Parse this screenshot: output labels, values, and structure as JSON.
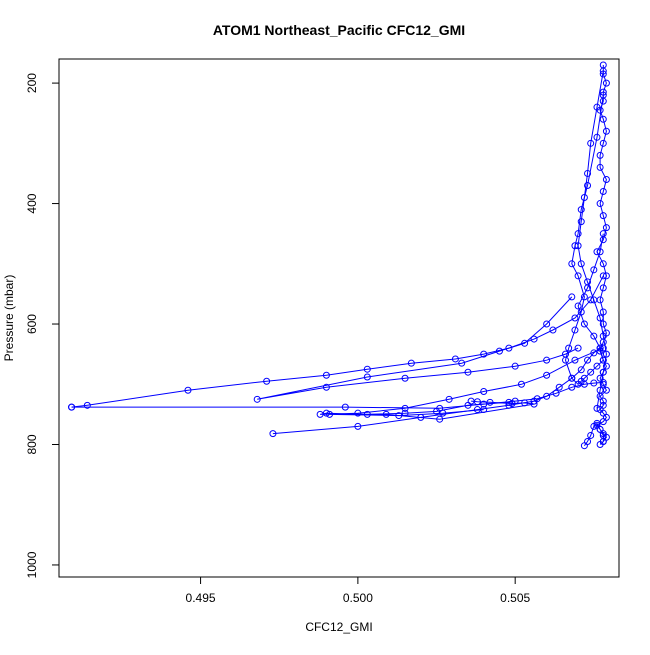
{
  "chart_data": {
    "type": "scatter",
    "title": "ATOM1 Northeast_Pacific CFC12_GMI",
    "xlabel": "CFC12_GMI",
    "ylabel": "Pressure (mbar)",
    "xlim": [
      0.4905,
      0.5083
    ],
    "ylim": [
      1020,
      160
    ],
    "y_reversed": true,
    "grid": false,
    "legend": "none",
    "series_color": "#0000ff",
    "x_ticks": [
      {
        "value": 0.495,
        "label": "0.495"
      },
      {
        "value": 0.5,
        "label": "0.500"
      },
      {
        "value": 0.505,
        "label": "0.505"
      }
    ],
    "y_ticks": [
      {
        "value": 200,
        "label": "200"
      },
      {
        "value": 400,
        "label": "400"
      },
      {
        "value": 600,
        "label": "600"
      },
      {
        "value": 800,
        "label": "800"
      },
      {
        "value": 1000,
        "label": "1000"
      }
    ],
    "series": [
      {
        "x": [
          0.5078,
          0.5078,
          0.5079,
          0.5078,
          0.5078,
          0.5077,
          0.5078,
          0.5079,
          0.5078,
          0.5077,
          0.5077,
          0.5079,
          0.5078,
          0.5077,
          0.5078,
          0.5079,
          0.5078,
          0.5076,
          0.5078,
          0.5079,
          0.5078,
          0.5077,
          0.5078,
          0.5078,
          0.5079,
          0.5078,
          0.5077,
          0.5078,
          0.5079,
          0.5078,
          0.5077,
          0.5078,
          0.5079,
          0.5077,
          0.5078,
          0.5078,
          0.5077,
          0.5078,
          0.5079,
          0.5078,
          0.5076,
          0.5077,
          0.5078,
          0.5079,
          0.5078,
          0.5077,
          0.5078,
          0.5078,
          0.5077,
          0.5076,
          0.5075,
          0.5074,
          0.5073,
          0.5072
        ],
        "y": [
          170,
          185,
          200,
          215,
          230,
          245,
          260,
          280,
          300,
          320,
          340,
          360,
          380,
          400,
          420,
          440,
          460,
          480,
          500,
          520,
          540,
          560,
          580,
          600,
          615,
          630,
          645,
          660,
          670,
          680,
          690,
          700,
          710,
          720,
          728,
          735,
          742,
          748,
          755,
          762,
          768,
          775,
          782,
          788,
          795,
          800,
          795,
          785,
          775,
          765,
          770,
          785,
          795,
          802
        ]
      },
      {
        "x": [
          0.5078,
          0.5076,
          0.5073,
          0.5071,
          0.507,
          0.5069,
          0.5068,
          0.507,
          0.5072,
          0.5071,
          0.5069,
          0.5067,
          0.5066,
          0.5068,
          0.507,
          0.5071,
          0.5072,
          0.5074,
          0.5076,
          0.5078,
          0.5077,
          0.5075,
          0.5072,
          0.507,
          0.5073,
          0.5075,
          0.5077,
          0.5078
        ],
        "y": [
          220,
          290,
          370,
          410,
          450,
          470,
          500,
          520,
          555,
          580,
          610,
          640,
          660,
          690,
          700,
          695,
          690,
          680,
          670,
          660,
          640,
          620,
          600,
          570,
          540,
          510,
          480,
          450
        ]
      },
      {
        "x": [
          0.5078,
          0.5074,
          0.5069,
          0.5062,
          0.5056,
          0.5048,
          0.504,
          0.5031,
          0.5017,
          0.5003,
          0.499,
          0.4971,
          0.4946,
          0.4914,
          0.4909
        ],
        "y": [
          520,
          560,
          590,
          610,
          625,
          640,
          650,
          658,
          665,
          675,
          685,
          695,
          710,
          735,
          738
        ]
      },
      {
        "x": [
          0.5068,
          0.506,
          0.5053,
          0.5045,
          0.5033,
          0.5003,
          0.4968,
          0.499,
          0.5015,
          0.5035,
          0.505,
          0.506,
          0.5066,
          0.507
        ],
        "y": [
          555,
          600,
          632,
          645,
          665,
          688,
          725,
          705,
          690,
          680,
          670,
          660,
          650,
          640
        ]
      },
      {
        "x": [
          0.4909,
          0.4996,
          0.5026,
          0.504,
          0.505,
          0.5057,
          0.5063,
          0.5068,
          0.5072,
          0.5075,
          0.5078
        ],
        "y": [
          738,
          738,
          740,
          733,
          728,
          724,
          715,
          705,
          700,
          698,
          697
        ]
      },
      {
        "x": [
          0.5078,
          0.5069,
          0.506,
          0.5052,
          0.504,
          0.5029,
          0.5015,
          0.5,
          0.4988,
          0.499,
          0.5003,
          0.5015,
          0.5025,
          0.5035,
          0.5048
        ],
        "y": [
          640,
          660,
          685,
          700,
          712,
          725,
          740,
          748,
          750,
          748,
          750,
          748,
          745,
          735,
          730
        ]
      },
      {
        "x": [
          0.4973,
          0.5,
          0.502,
          0.5038,
          0.5048,
          0.5056,
          0.506,
          0.5064,
          0.5068,
          0.5071,
          0.5073,
          0.5075,
          0.5077
        ],
        "y": [
          782,
          770,
          755,
          742,
          735,
          728,
          720,
          705,
          690,
          676,
          660,
          648,
          640
        ]
      },
      {
        "x": [
          0.5036,
          0.5038,
          0.5042,
          0.5049,
          0.5053,
          0.5056,
          0.5026,
          0.5009,
          0.4991,
          0.5013,
          0.5027,
          0.504
        ],
        "y": [
          728,
          729,
          730,
          732,
          731,
          733,
          758,
          750,
          750,
          752,
          748,
          742
        ]
      },
      {
        "x": [
          0.5078,
          0.5076,
          0.5074,
          0.5073,
          0.5072,
          0.5071,
          0.507,
          0.5071,
          0.5073,
          0.5075,
          0.5077,
          0.5078,
          0.5079,
          0.5078,
          0.5077,
          0.5076
        ],
        "y": [
          180,
          240,
          300,
          350,
          390,
          430,
          470,
          500,
          530,
          560,
          590,
          620,
          650,
          680,
          710,
          740
        ]
      }
    ]
  }
}
